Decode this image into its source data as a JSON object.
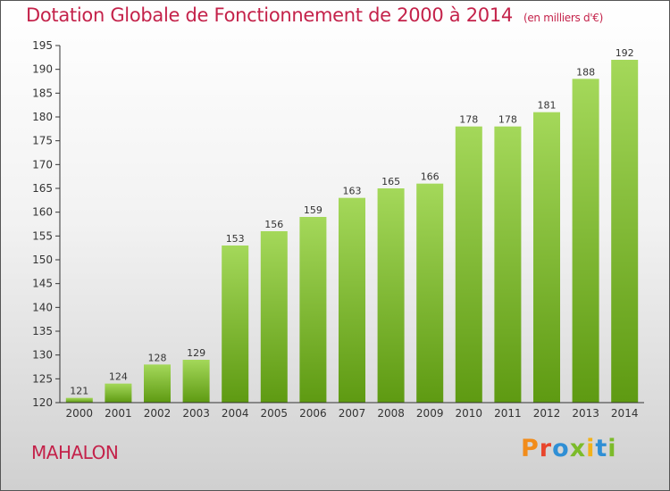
{
  "header": {
    "title": "Dotation Globale de Fonctionnement de 2000 à 2014",
    "unit": "(en milliers d'€)"
  },
  "footer": {
    "commune": "MAHALON",
    "brand": "Proxiti",
    "brand_colors": [
      "#f28c1a",
      "#e8452c",
      "#2f8fd5",
      "#7cbb2a",
      "#f2b21a",
      "#2f8fd5",
      "#7cbb2a"
    ]
  },
  "colors": {
    "accent": "#c4224a",
    "bar_light": "#a4d85a",
    "bar_dark": "#5e9a12",
    "axis": "#333333"
  },
  "chart_data": {
    "type": "bar",
    "categories": [
      "2000",
      "2001",
      "2002",
      "2003",
      "2004",
      "2005",
      "2006",
      "2007",
      "2008",
      "2009",
      "2010",
      "2011",
      "2012",
      "2013",
      "2014"
    ],
    "values": [
      121,
      124,
      128,
      129,
      153,
      156,
      159,
      163,
      165,
      166,
      178,
      178,
      181,
      188,
      192
    ],
    "title": "Dotation Globale de Fonctionnement de 2000 à 2014",
    "ylim": [
      120,
      195
    ],
    "yticks": [
      120,
      125,
      130,
      135,
      140,
      145,
      150,
      155,
      160,
      165,
      170,
      175,
      180,
      185,
      190,
      195
    ],
    "grid": false,
    "data_labels": true
  }
}
